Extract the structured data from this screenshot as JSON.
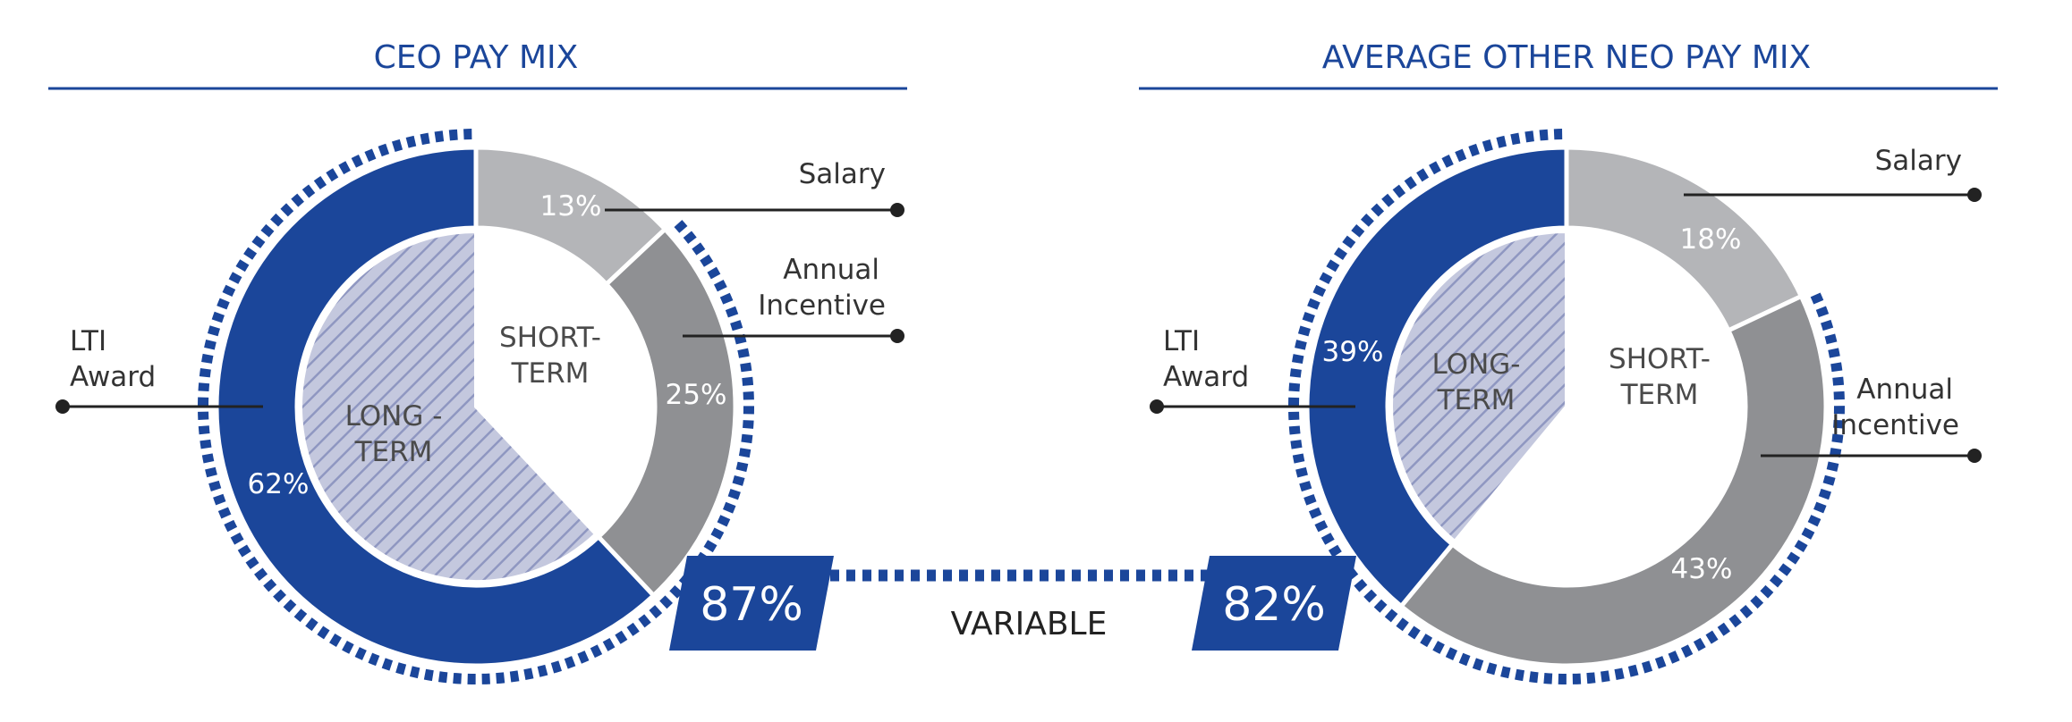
{
  "colors": {
    "navy": "#1b469a",
    "salary": "#b4b5b8",
    "annual_incentive": "#8f9093",
    "hatch_bg": "#c4c8de",
    "hatch_line": "#8f97c1",
    "leader": "#222222"
  },
  "variable_label": "VARIABLE",
  "chart_data": [
    {
      "type": "pie",
      "title": "CEO PAY MIX",
      "outer_ring": [
        {
          "label": "Salary",
          "value": 13,
          "text": "13%"
        },
        {
          "label": "Annual Incentive",
          "value": 25,
          "text": "25%"
        },
        {
          "label": "LTI Award",
          "value": 62,
          "text": "62%"
        }
      ],
      "inner_groups": [
        {
          "label_lines": [
            "SHORT-",
            "TERM"
          ],
          "value": 38
        },
        {
          "label_lines": [
            "LONG -",
            "TERM"
          ],
          "value": 62
        }
      ],
      "callouts": {
        "salary": [
          "Salary"
        ],
        "annual_incentive": [
          "Annual",
          "Incentive"
        ],
        "lti": [
          "LTI",
          "Award"
        ]
      },
      "variable_percent": "87%"
    },
    {
      "type": "pie",
      "title": "AVERAGE OTHER NEO PAY MIX",
      "outer_ring": [
        {
          "label": "Salary",
          "value": 18,
          "text": "18%"
        },
        {
          "label": "Annual Incentive",
          "value": 43,
          "text": "43%"
        },
        {
          "label": "LTI Award",
          "value": 39,
          "text": "39%"
        }
      ],
      "inner_groups": [
        {
          "label_lines": [
            "SHORT-",
            "TERM"
          ],
          "value": 61
        },
        {
          "label_lines": [
            "LONG-",
            "TERM"
          ],
          "value": 39
        }
      ],
      "callouts": {
        "salary": [
          "Salary"
        ],
        "annual_incentive": [
          "Annual",
          "Incentive"
        ],
        "lti": [
          "LTI",
          "Award"
        ]
      },
      "variable_percent": "82%"
    }
  ]
}
